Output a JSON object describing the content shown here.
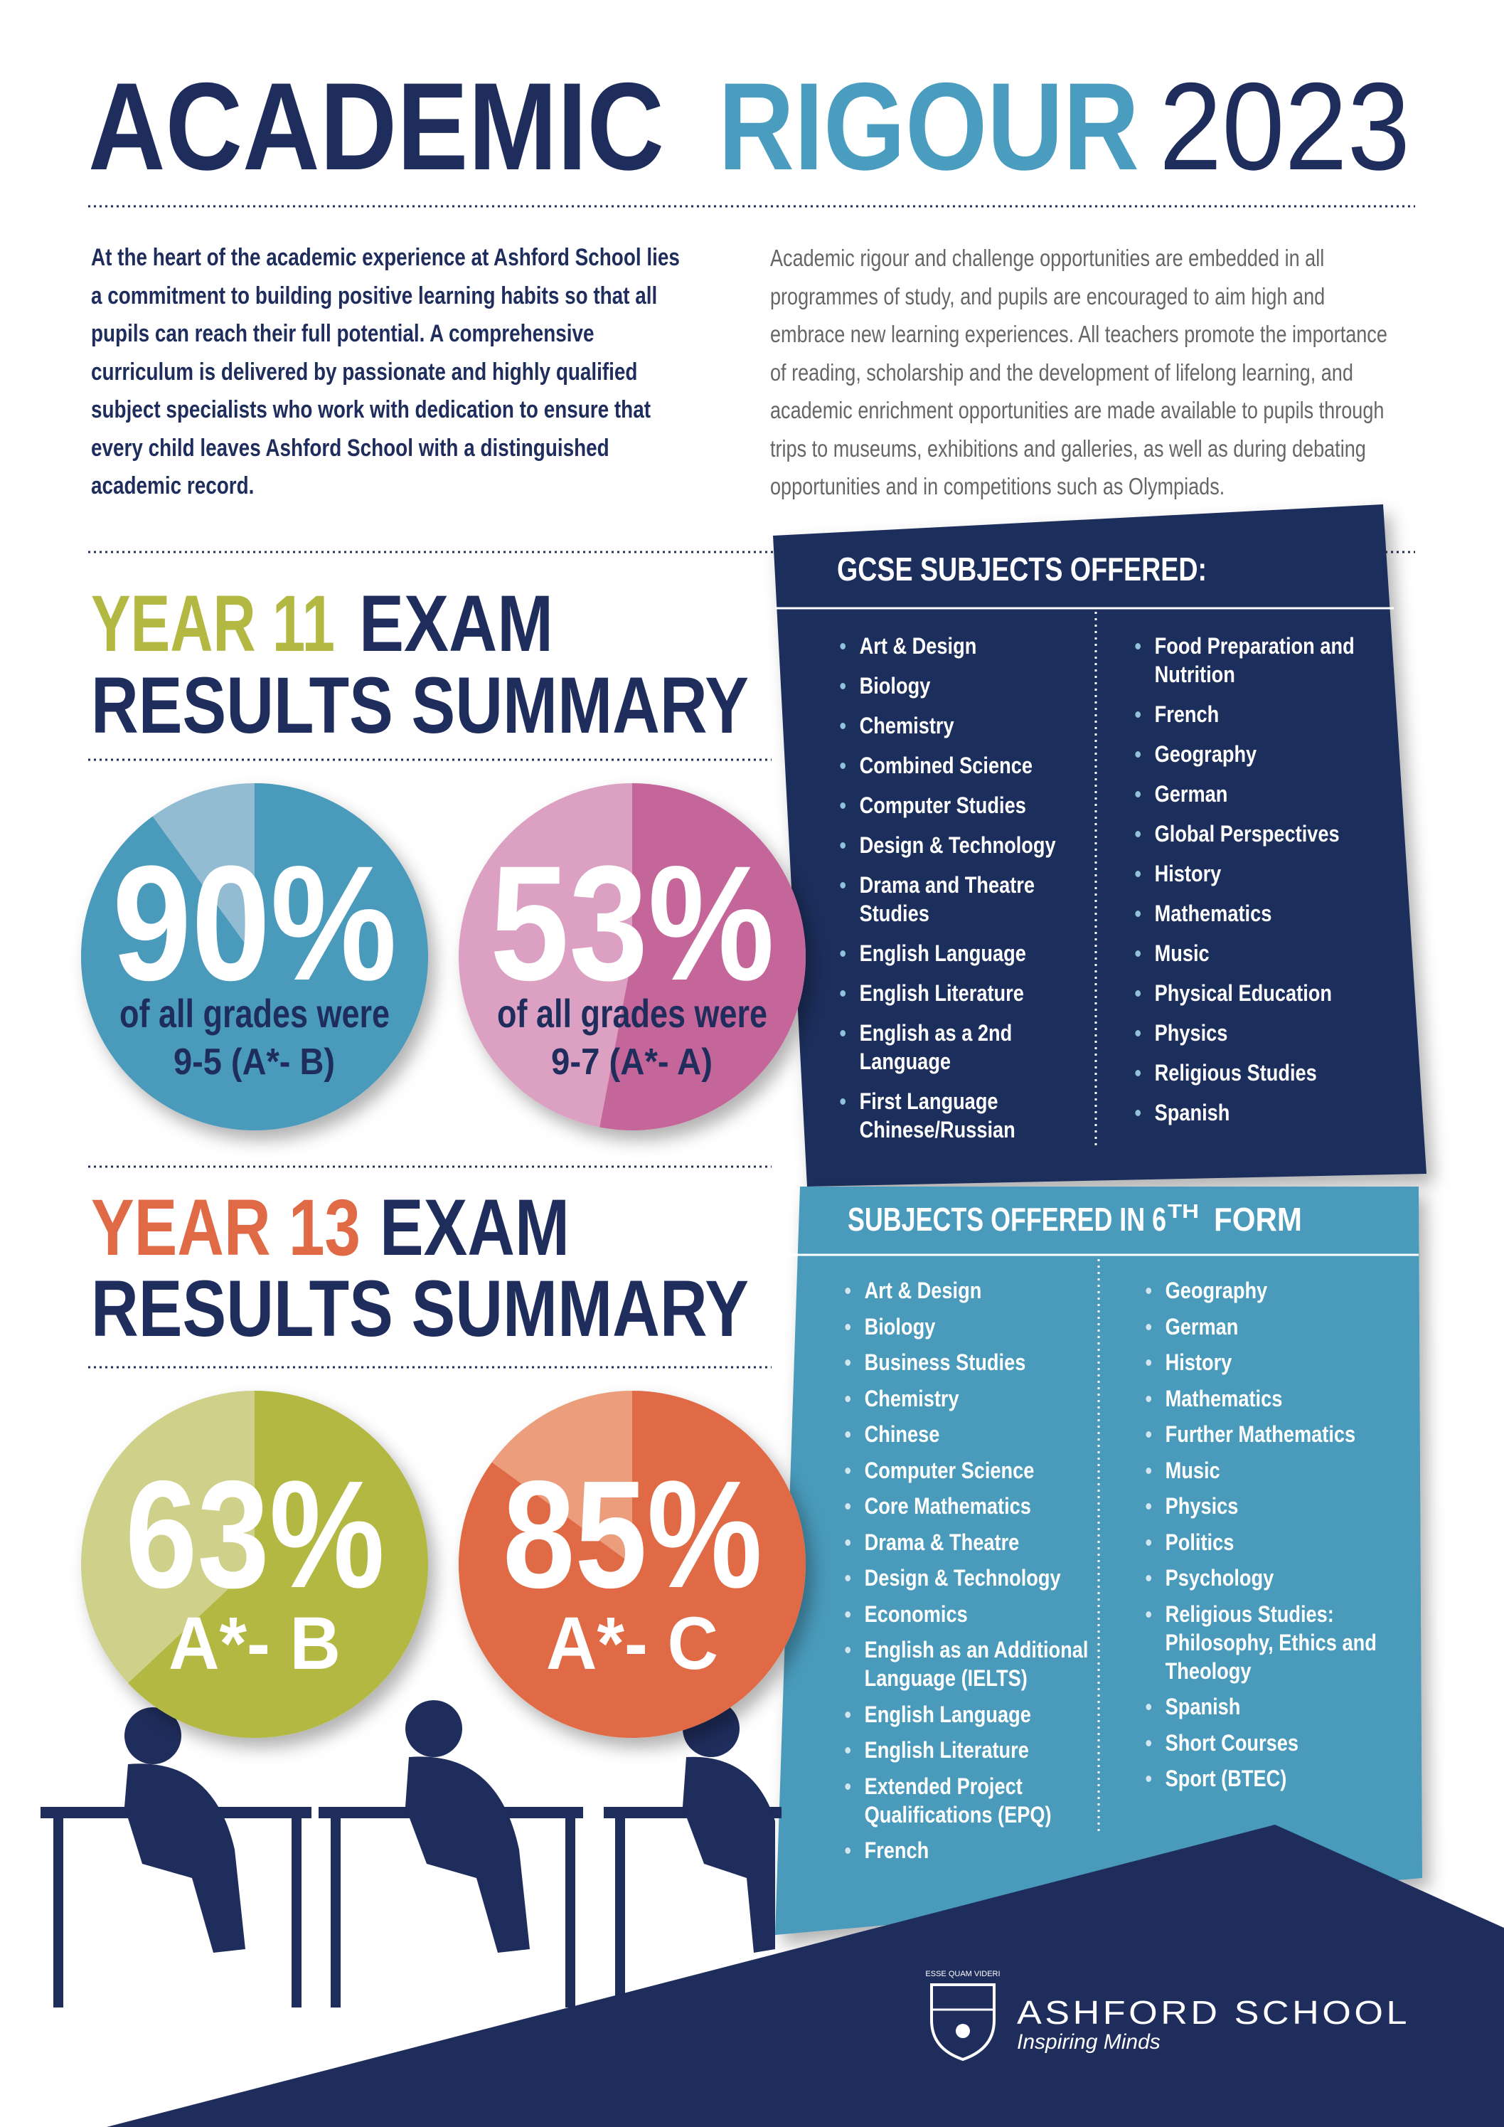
{
  "title": {
    "part1": "ACADEMIC",
    "part2": "RIGOUR",
    "part3": "2023"
  },
  "intro": {
    "left": "At the heart of the academic experience at Ashford School lies a commitment to building positive learning habits so that all pupils can reach their full potential. A comprehensive curriculum is delivered by passionate and highly qualified subject specialists who work with dedication to ensure that every child leaves Ashford School with a distinguished academic record.",
    "right": "Academic rigour and challenge opportunities are embedded in all programmes of study, and pupils are encouraged to aim high and embrace new learning experiences. All teachers promote the importance of reading, scholarship and the development of lifelong learning, and academic enrichment opportunities are made available to pupils through trips to museums, exhibitions and galleries, as well as during debating opportunities and in competitions such as Olympiads."
  },
  "year11": {
    "heading_highlight": "YEAR 11",
    "heading_rest": "EXAM",
    "heading_line2": "RESULTS SUMMARY",
    "highlight_color": "#b3b843",
    "stats": [
      {
        "value": 90,
        "label": "90%",
        "caption": "of all grades were",
        "grades": "9-5 (A*- B)",
        "color": "#4a9abb",
        "light": "#93bcd3"
      },
      {
        "value": 53,
        "label": "53%",
        "caption": "of all grades were",
        "grades": "9-7 (A*- A)",
        "color": "#c5669a",
        "light": "#dba0c2"
      }
    ]
  },
  "year13": {
    "heading_highlight": "YEAR 13",
    "heading_rest": "EXAM",
    "heading_line2": "RESULTS SUMMARY",
    "highlight_color": "#e06a45",
    "stats": [
      {
        "value": 63,
        "label": "63%",
        "grades": "A*- B",
        "color": "#b3b843",
        "light": "#cfd08a"
      },
      {
        "value": 85,
        "label": "85%",
        "grades": "A*- C",
        "color": "#e06a45",
        "light": "#ec9d7c"
      }
    ]
  },
  "gcse": {
    "heading": "GCSE SUBJECTS OFFERED:",
    "column1": [
      "Art & Design",
      "Biology",
      "Chemistry",
      "Combined Science",
      "Computer Studies",
      "Design & Technology",
      "Drama and Theatre Studies",
      "English Language",
      "English Literature",
      "English as a 2nd Language",
      "First Language Chinese/Russian"
    ],
    "column2": [
      "Food Preparation and Nutrition",
      "French",
      "Geography",
      "German",
      "Global Perspectives",
      "History",
      "Mathematics",
      "Music",
      "Physical Education",
      "Physics",
      "Religious Studies",
      "Spanish"
    ]
  },
  "sixth_form": {
    "heading": "SUBJECTS OFFERED IN 6",
    "heading_sup": "TH",
    "heading_end": "FORM",
    "column1": [
      "Art & Design",
      "Biology",
      "Business Studies",
      "Chemistry",
      "Chinese",
      "Computer Science",
      "Core Mathematics",
      "Drama & Theatre",
      "Design & Technology",
      "Economics",
      "English as an Additional Language (IELTS)",
      "English Language",
      "English Literature",
      "Extended Project Qualifications (EPQ)",
      "French"
    ],
    "column2": [
      "Geography",
      "German",
      "History",
      "Mathematics",
      "Further Mathematics",
      "Music",
      "Physics",
      "Politics",
      "Psychology",
      "Religious Studies: Philosophy, Ethics and Theology",
      "Spanish",
      "Short Courses",
      "Sport (BTEC)"
    ]
  },
  "footer": {
    "motto": "ESSE QUAM VIDERI",
    "school": "ASHFORD SCHOOL",
    "tagline": "Inspiring Minds"
  }
}
